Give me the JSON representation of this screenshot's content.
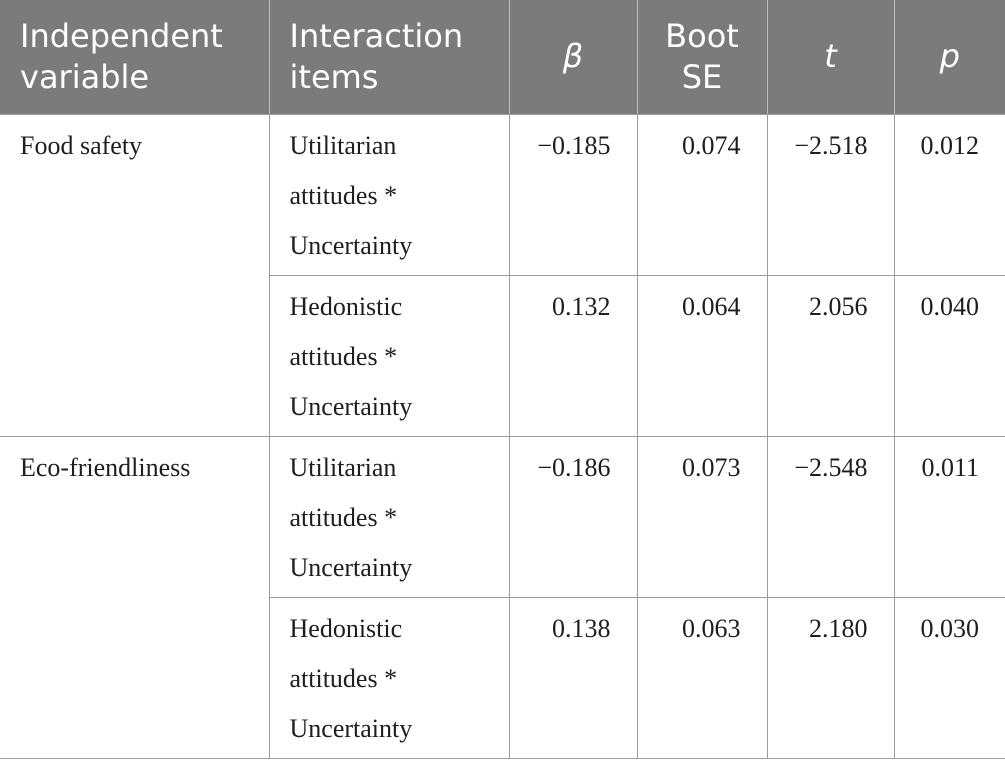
{
  "table": {
    "headers": [
      {
        "label": "Independent variable"
      },
      {
        "label": "Interaction items"
      },
      {
        "label": "β"
      },
      {
        "label": "Boot SE"
      },
      {
        "label": "t"
      },
      {
        "label": "p"
      }
    ],
    "groups": [
      {
        "independent_variable": "Food safety",
        "rows": [
          {
            "interaction": "Utilitarian attitudes * Uncertainty",
            "beta": "−0.185",
            "boot_se": "0.074",
            "t": "−2.518",
            "p": "0.012"
          },
          {
            "interaction": "Hedonistic attitudes * Uncertainty",
            "beta": "0.132",
            "boot_se": "0.064",
            "t": "2.056",
            "p": "0.040"
          }
        ]
      },
      {
        "independent_variable": "Eco-friendliness",
        "rows": [
          {
            "interaction": "Utilitarian attitudes * Uncertainty",
            "beta": "−0.186",
            "boot_se": "0.073",
            "t": "−2.548",
            "p": "0.011"
          },
          {
            "interaction": "Hedonistic attitudes * Uncertainty",
            "beta": "0.138",
            "boot_se": "0.063",
            "t": "2.180",
            "p": "0.030"
          }
        ]
      }
    ]
  }
}
